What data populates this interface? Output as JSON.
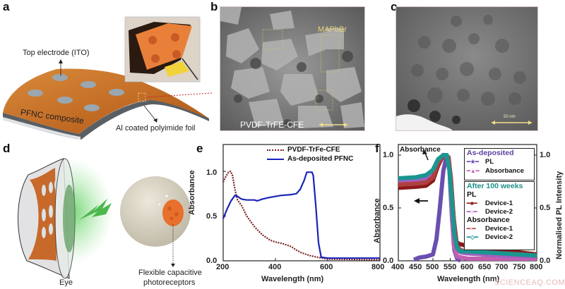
{
  "figure": {
    "panels": {
      "a": {
        "label": "a",
        "annotations": {
          "top_electrode": "Top electrode (ITO)",
          "composite": "PFNC composite",
          "foil": "Al coated polyimide foil"
        },
        "colors": {
          "sheet": "#c8752c",
          "electrode": "#9aa7b0",
          "foil": "#555a5e"
        }
      },
      "b": {
        "label": "b",
        "annotations": {
          "crystal": "MAPbBr",
          "matrix": "PVDF-TrFE-CFE"
        },
        "colors": {
          "annotation": "#e8d27a",
          "scalebar": "#f0e08a"
        }
      },
      "c": {
        "label": "c",
        "annotations": {
          "scalebar": "50 nm"
        }
      },
      "d": {
        "label": "d",
        "annotations": {
          "eye": "Eye",
          "receptors_line1": "Flexible capacitive",
          "receptors_line2": "photoreceptors"
        },
        "colors": {
          "retina": "#c8692c",
          "glow": "#6fcf6f",
          "ball": "#d8d2c2"
        }
      },
      "e": {
        "label": "e"
      },
      "f": {
        "label": "f"
      }
    }
  },
  "chart_data": [
    {
      "panel": "e",
      "type": "line",
      "title": "",
      "xlabel": "Wavelength (nm)",
      "ylabel": "Absorbance",
      "xlim": [
        200,
        800
      ],
      "ylim": [
        0,
        1.3
      ],
      "xticks": [
        "200",
        "400",
        "600",
        "800"
      ],
      "yticks": [
        "0.0",
        "0.5",
        "1.0"
      ],
      "grid": false,
      "legend_position": "top-right",
      "series": [
        {
          "name": "PVDF-TrFe-CFE",
          "style": "dotted",
          "color": "#7a1f1f",
          "x": [
            200,
            210,
            220,
            228,
            235,
            245,
            255,
            270,
            290,
            320,
            350,
            380,
            400,
            430,
            460,
            480,
            500,
            530,
            560,
            580,
            600,
            700,
            800
          ],
          "y": [
            0.88,
            0.94,
            0.99,
            1.0,
            0.96,
            0.8,
            0.68,
            0.62,
            0.5,
            0.38,
            0.29,
            0.23,
            0.21,
            0.19,
            0.16,
            0.12,
            0.09,
            0.06,
            0.04,
            0.03,
            0.02,
            0.015,
            0.01
          ]
        },
        {
          "name": "As-deposited PFNC",
          "style": "solid",
          "color": "#1a24b8",
          "x": [
            200,
            215,
            230,
            245,
            255,
            270,
            290,
            320,
            330,
            350,
            380,
            420,
            460,
            480,
            495,
            510,
            520,
            540,
            545,
            555,
            565,
            575,
            600,
            700,
            800
          ],
          "y": [
            0.47,
            0.58,
            0.67,
            0.73,
            0.72,
            0.69,
            0.68,
            0.68,
            0.67,
            0.69,
            0.71,
            0.73,
            0.74,
            0.75,
            0.8,
            0.9,
            0.99,
            0.99,
            0.95,
            0.6,
            0.2,
            0.04,
            0.03,
            0.03,
            0.03
          ]
        }
      ]
    },
    {
      "panel": "f",
      "type": "line",
      "title": "",
      "xlabel": "Wavelength (nm)",
      "ylabel": "Absorbance",
      "ylabel_right": "Normalised PL Intensity",
      "xlim": [
        400,
        800
      ],
      "ylim": [
        0,
        1.1
      ],
      "xticks": [
        "400",
        "450",
        "500",
        "550",
        "600",
        "650",
        "700",
        "750",
        "800"
      ],
      "yticks": [
        "0.0",
        "0.5",
        "1.0"
      ],
      "yticks_right": [
        "0.0",
        "0.5",
        "1.0"
      ],
      "grid": false,
      "annotations": [
        "Absorbance"
      ],
      "legend": {
        "groups": [
          {
            "title": "As-deposited",
            "title_color": "#5b3fa0",
            "entries": [
              "PL",
              "Absorbance"
            ]
          },
          {
            "title": "After 100 weeks",
            "title_color": "#1a8f8a",
            "subgroups": [
              {
                "title": "PL",
                "entries": [
                  "Device-1",
                  "Device-2"
                ]
              },
              {
                "title": "Absorbance",
                "entries": [
                  "Device-1",
                  "Device-2"
                ]
              }
            ]
          }
        ]
      },
      "series": [
        {
          "name": "As-deposited PL",
          "color": "#6b4fb0",
          "marker": "star",
          "x": [
            445,
            460,
            480,
            500,
            510,
            520,
            530,
            540,
            548,
            555,
            562,
            570,
            580
          ],
          "y": [
            0.01,
            0.03,
            0.04,
            0.06,
            0.2,
            0.5,
            0.85,
            1.0,
            0.85,
            0.4,
            0.1,
            0.02,
            0.0
          ]
        },
        {
          "name": "As-deposited Absorbance",
          "color": "#c060b0",
          "marker": "triangle",
          "x": [
            400,
            450,
            480,
            500,
            515,
            530,
            545,
            550,
            555,
            560,
            570,
            600,
            700,
            800
          ],
          "y": [
            0.73,
            0.74,
            0.76,
            0.8,
            0.92,
            1.0,
            0.98,
            0.8,
            0.45,
            0.15,
            0.04,
            0.02,
            0.02,
            0.02
          ]
        },
        {
          "name": "After 100 weeks PL Device-1",
          "color": "#8b1a1a",
          "marker": "square",
          "x": [
            400,
            450,
            480,
            500,
            515,
            530,
            545,
            552,
            560,
            568,
            575,
            600,
            700,
            800
          ],
          "y": [
            0.69,
            0.7,
            0.71,
            0.76,
            0.9,
            1.0,
            0.98,
            0.75,
            0.4,
            0.18,
            0.16,
            0.14,
            0.1,
            0.06
          ]
        },
        {
          "name": "After 100 weeks PL Device-2",
          "color": "#a060c0",
          "marker": "circle",
          "x": [
            400,
            450,
            480,
            500,
            515,
            530,
            545,
            552,
            560,
            568,
            580,
            600,
            700,
            800
          ],
          "y": [
            0.75,
            0.76,
            0.77,
            0.82,
            0.94,
            1.0,
            0.97,
            0.7,
            0.35,
            0.12,
            0.08,
            0.07,
            0.05,
            0.04
          ]
        },
        {
          "name": "After 100 weeks Absorbance Device-1",
          "color": "#b04040",
          "marker": "open-circle",
          "x": [
            400,
            450,
            480,
            500,
            515,
            530,
            545,
            552,
            560,
            568,
            580,
            600,
            700,
            800
          ],
          "y": [
            0.72,
            0.73,
            0.74,
            0.79,
            0.92,
            1.0,
            0.98,
            0.78,
            0.4,
            0.14,
            0.1,
            0.09,
            0.07,
            0.05
          ]
        },
        {
          "name": "After 100 weeks Absorbance Device-2",
          "color": "#1a9690",
          "marker": "diamond",
          "x": [
            400,
            450,
            480,
            500,
            515,
            530,
            540,
            548,
            555,
            562,
            570,
            580,
            600,
            700,
            800
          ],
          "y": [
            0.78,
            0.79,
            0.81,
            0.86,
            0.96,
            1.0,
            1.0,
            0.85,
            0.55,
            0.25,
            0.12,
            0.09,
            0.09,
            0.07,
            0.05
          ]
        }
      ]
    }
  ],
  "watermark": "SCIENCEAQ.COM"
}
